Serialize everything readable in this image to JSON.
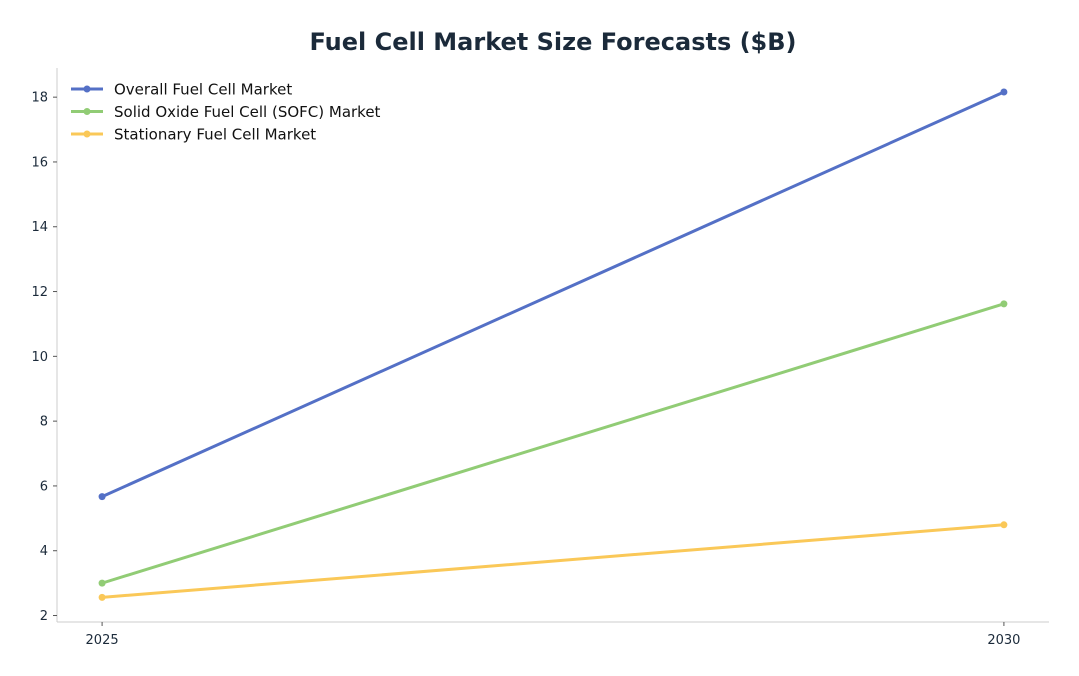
{
  "chart_data": {
    "type": "line",
    "title": "Fuel Cell Market Size Forecasts ($B)",
    "xlabel": "",
    "ylabel": "",
    "x": [
      2025,
      2030
    ],
    "x_tick_labels": [
      "2025",
      "2030"
    ],
    "ylim": [
      1.8,
      18.9
    ],
    "xlim": [
      2024.75,
      2030.25
    ],
    "y_ticks": [
      2,
      4,
      6,
      8,
      10,
      12,
      14,
      16,
      18
    ],
    "grid": false,
    "legend_placement": "top-left",
    "series": [
      {
        "name": "Overall Fuel Cell Market",
        "values": [
          5.67,
          18.16
        ],
        "color": "#5470c6"
      },
      {
        "name": "Solid Oxide Fuel Cell (SOFC) Market",
        "values": [
          3.0,
          11.62
        ],
        "color": "#91cc75"
      },
      {
        "name": "Stationary Fuel Cell Market",
        "values": [
          2.56,
          4.8
        ],
        "color": "#fac858"
      }
    ]
  }
}
